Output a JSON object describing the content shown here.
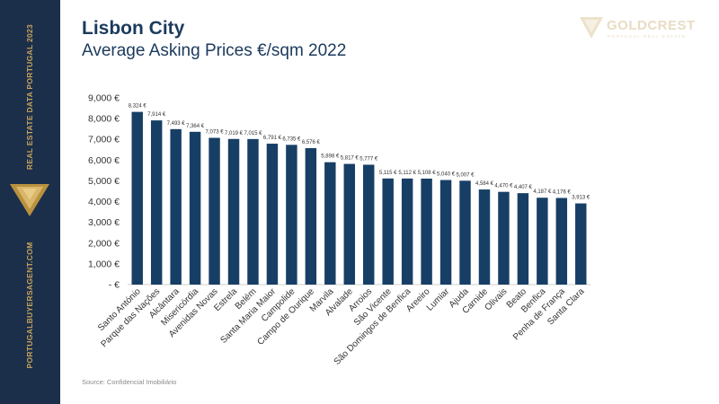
{
  "sidebar": {
    "top_text": "REAL ESTATE DATA PORTUGAL 2023",
    "bottom_text": "PORTUGALBUYERSAGENT.COM",
    "bg_color": "#1c2f4a",
    "accent_color": "#c9a45c",
    "icon": "chevron-down-icon"
  },
  "header": {
    "title": "Lisbon City",
    "subtitle": "Average Asking Prices €/sqm 2022"
  },
  "logo": {
    "name": "GOLDCREST",
    "tagline": "PORTUGAL REAL ESTATE",
    "icon": "goldcrest-logo-icon"
  },
  "chart_data": {
    "type": "bar",
    "title": "",
    "xlabel": "",
    "ylabel": "",
    "ylim": [
      0,
      9000
    ],
    "yticks": [
      "- €",
      "1,000 €",
      "2,000 €",
      "3,000 €",
      "4,000 €",
      "5,000 €",
      "6,000 €",
      "7,000 €",
      "8,000 €",
      "9,000 €"
    ],
    "grid": false,
    "bar_color": "#173f66",
    "categories": [
      "Santo António",
      "Parque das Nações",
      "Alcântara",
      "Misericórdia",
      "Avenidas Novas",
      "Estrela",
      "Belém",
      "Santa Maria Maior",
      "Campolide",
      "Campo de Ourique",
      "Marvila",
      "Alvalade",
      "Arroios",
      "São Vicente",
      "São Domingos de Benfica",
      "Areeiro",
      "Lumiar",
      "Ajuda",
      "Carnide",
      "Olivais",
      "Beato",
      "Benfica",
      "Penha de França",
      "Santa Clara"
    ],
    "values": [
      8324,
      7914,
      7493,
      7364,
      7073,
      7019,
      7015,
      6791,
      6735,
      6576,
      5898,
      5817,
      5777,
      5115,
      5112,
      5108,
      5040,
      5007,
      4584,
      4470,
      4407,
      4187,
      4176,
      3913
    ],
    "data_labels": [
      "8,324 €",
      "7,914 €",
      "7,493 €",
      "7,364 €",
      "7,073 €",
      "7,019 €",
      "7,015 €",
      "6,791 €",
      "6,735 €",
      "6,576 €",
      "5,898 €",
      "5,817 €",
      "5,777 €",
      "5,115 €",
      "5,112 €",
      "5,108 €",
      "5,040 €",
      "5,007 €",
      "4,584 €",
      "4,470 €",
      "4,407 €",
      "4,187 €",
      "4,176 €",
      "3,913 €"
    ]
  },
  "footer": {
    "source": "Source: Confidencial Imobiliário"
  }
}
